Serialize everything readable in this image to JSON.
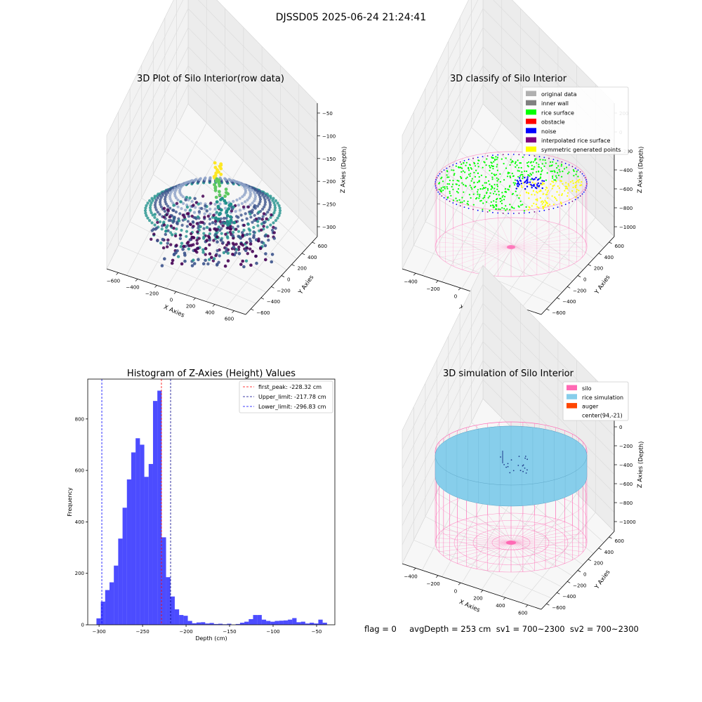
{
  "suptitle": "DJSSD05 2025-06-24 21:24:41",
  "status_line": "flag = 0     avgDepth = 253 cm  sv1 = 700~2300  sv2 = 700~2300",
  "chart_data": [
    {
      "type": "scatter",
      "title": "3D Plot of Silo Interior(row data)",
      "xlabel": "X Axies",
      "ylabel": "Y Axies",
      "zlabel": "Z Axies (Depth)",
      "x_ticks": [
        "−600",
        "−400",
        "−200",
        "0",
        "200",
        "400",
        "600"
      ],
      "y_ticks": [
        "−600",
        "−400",
        "−200",
        "0",
        "200",
        "400",
        "600"
      ],
      "z_ticks": [
        "−50",
        "−100",
        "−150",
        "−200",
        "−250",
        "−300"
      ],
      "colormap": [
        "#440154",
        "#3b528b",
        "#21918c",
        "#5ec962",
        "#fde725"
      ]
    },
    {
      "type": "scatter",
      "title": "3D classify of Silo Interior",
      "xlabel": "X Axies",
      "ylabel": "Y Axies",
      "zlabel": "Z Axies (Depth)",
      "x_ticks": [
        "−400",
        "−200",
        "0",
        "200",
        "400",
        "600"
      ],
      "y_ticks": [
        "−600",
        "−400",
        "−200",
        "0",
        "200",
        "400",
        "600"
      ],
      "z_ticks": [
        "200",
        "0",
        "−200",
        "−400",
        "−600",
        "−800",
        "−1000"
      ],
      "legend": [
        {
          "label": "original data",
          "color": "#b0b0b0"
        },
        {
          "label": "inner wall",
          "color": "#808080"
        },
        {
          "label": "rice surface",
          "color": "#00ff00"
        },
        {
          "label": "obstacle",
          "color": "#ff0000"
        },
        {
          "label": "noise",
          "color": "#0000ff"
        },
        {
          "label": "interpolated rice surface",
          "color": "#800080"
        },
        {
          "label": "symmetric generated points",
          "color": "#ffff00"
        }
      ],
      "wall_color": "#ff69b4"
    },
    {
      "type": "bar",
      "title": "Histogram of Z-Axies (Height) Values",
      "xlabel": "Depth (cm)",
      "ylabel": "Frequency",
      "bar_color": "#0000ff",
      "xlim": [
        -313,
        -29
      ],
      "ylim": [
        0,
        955
      ],
      "x_ticks": [
        -300,
        -250,
        -200,
        -150,
        -100,
        -50
      ],
      "y_ticks": [
        0,
        200,
        400,
        600,
        800
      ],
      "bins": [
        {
          "x0": -303,
          "x1": -298,
          "y": 25
        },
        {
          "x0": -298,
          "x1": -293,
          "y": 90
        },
        {
          "x0": -293,
          "x1": -288,
          "y": 135
        },
        {
          "x0": -288,
          "x1": -283,
          "y": 165
        },
        {
          "x0": -283,
          "x1": -278,
          "y": 230
        },
        {
          "x0": -278,
          "x1": -273,
          "y": 335
        },
        {
          "x0": -273,
          "x1": -268,
          "y": 455
        },
        {
          "x0": -268,
          "x1": -263,
          "y": 565
        },
        {
          "x0": -263,
          "x1": -258,
          "y": 670
        },
        {
          "x0": -258,
          "x1": -253,
          "y": 725
        },
        {
          "x0": -253,
          "x1": -248,
          "y": 700
        },
        {
          "x0": -248,
          "x1": -243,
          "y": 575
        },
        {
          "x0": -243,
          "x1": -238,
          "y": 625
        },
        {
          "x0": -238,
          "x1": -233,
          "y": 870
        },
        {
          "x0": -233,
          "x1": -228,
          "y": 910
        },
        {
          "x0": -228,
          "x1": -223,
          "y": 340
        },
        {
          "x0": -223,
          "x1": -218,
          "y": 185
        },
        {
          "x0": -218,
          "x1": -213,
          "y": 110
        },
        {
          "x0": -213,
          "x1": -208,
          "y": 60
        },
        {
          "x0": -208,
          "x1": -203,
          "y": 38
        },
        {
          "x0": -203,
          "x1": -198,
          "y": 35
        },
        {
          "x0": -198,
          "x1": -193,
          "y": 15
        },
        {
          "x0": -193,
          "x1": -188,
          "y": 6
        },
        {
          "x0": -188,
          "x1": -183,
          "y": 9
        },
        {
          "x0": -183,
          "x1": -178,
          "y": 10
        },
        {
          "x0": -178,
          "x1": -173,
          "y": 5
        },
        {
          "x0": -173,
          "x1": -168,
          "y": 7
        },
        {
          "x0": -168,
          "x1": -163,
          "y": 3
        },
        {
          "x0": -163,
          "x1": -158,
          "y": 4
        },
        {
          "x0": -158,
          "x1": -153,
          "y": 2
        },
        {
          "x0": -153,
          "x1": -148,
          "y": 4
        },
        {
          "x0": -148,
          "x1": -143,
          "y": 0
        },
        {
          "x0": -143,
          "x1": -138,
          "y": 3
        },
        {
          "x0": -138,
          "x1": -133,
          "y": 8
        },
        {
          "x0": -133,
          "x1": -128,
          "y": 12
        },
        {
          "x0": -128,
          "x1": -123,
          "y": 22
        },
        {
          "x0": -123,
          "x1": -118,
          "y": 38
        },
        {
          "x0": -118,
          "x1": -113,
          "y": 38
        },
        {
          "x0": -113,
          "x1": -108,
          "y": 20
        },
        {
          "x0": -108,
          "x1": -103,
          "y": 15
        },
        {
          "x0": -103,
          "x1": -98,
          "y": 12
        },
        {
          "x0": -98,
          "x1": -93,
          "y": 15
        },
        {
          "x0": -93,
          "x1": -88,
          "y": 16
        },
        {
          "x0": -88,
          "x1": -83,
          "y": 17
        },
        {
          "x0": -83,
          "x1": -78,
          "y": 20
        },
        {
          "x0": -78,
          "x1": -73,
          "y": 26
        },
        {
          "x0": -73,
          "x1": -68,
          "y": 10
        },
        {
          "x0": -68,
          "x1": -63,
          "y": 12
        },
        {
          "x0": -63,
          "x1": -58,
          "y": 5
        },
        {
          "x0": -58,
          "x1": -53,
          "y": 8
        },
        {
          "x0": -53,
          "x1": -48,
          "y": 5
        },
        {
          "x0": -48,
          "x1": -43,
          "y": 20
        },
        {
          "x0": -43,
          "x1": -38,
          "y": 8
        }
      ],
      "vlines": [
        {
          "label": "first_peak: -228.32 cm",
          "x": -228.32,
          "color": "#ff0000"
        },
        {
          "label": "Upper_limit: -217.78 cm",
          "x": -217.78,
          "color": "#00008b"
        },
        {
          "label": "Lower_limit: -296.83 cm",
          "x": -296.83,
          "color": "#0000ff"
        }
      ],
      "legend_position": "upper right"
    },
    {
      "type": "scatter",
      "title": "3D simulation of Silo Interior",
      "xlabel": "X Axies",
      "ylabel": "Y Axies",
      "zlabel": "Z Axies (Depth)",
      "x_ticks": [
        "−400",
        "−200",
        "0",
        "200",
        "400",
        "600"
      ],
      "y_ticks": [
        "−600",
        "−400",
        "−200",
        "0",
        "200",
        "400",
        "600"
      ],
      "z_ticks": [
        "200",
        "0",
        "−200",
        "−400",
        "−600",
        "−800",
        "−1000"
      ],
      "legend": [
        {
          "label": "silo",
          "color": "#ff69b4"
        },
        {
          "label": "rice simulation",
          "color": "#87ceeb"
        },
        {
          "label": "auger",
          "color": "#ff4500"
        },
        {
          "label": "center(94,-21)",
          "color": "#ffffff"
        }
      ],
      "surface_color": "#87ceeb",
      "wall_color": "#ff69b4"
    }
  ]
}
